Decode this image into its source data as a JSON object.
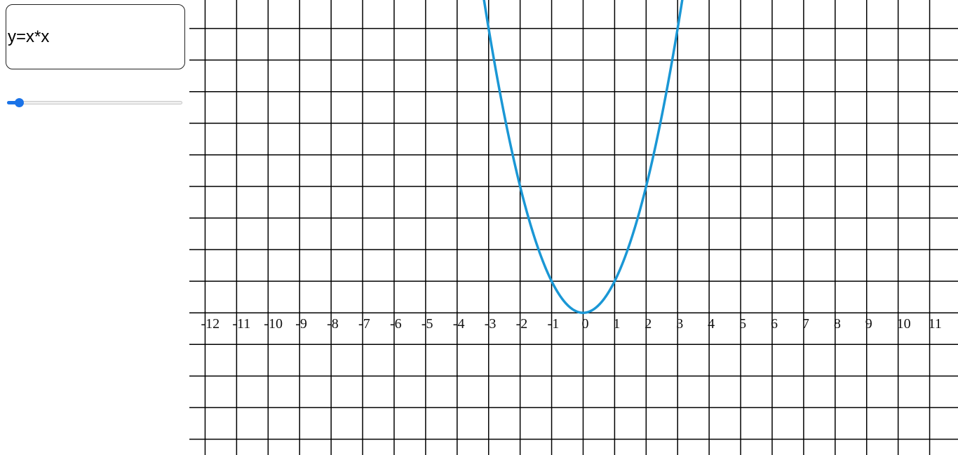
{
  "expression": {
    "value": "y=x*x",
    "placeholder": ""
  },
  "slider": {
    "fraction": 0.07,
    "accent_color": "#1a73e8"
  },
  "chart_data": {
    "type": "line",
    "title": "",
    "xlabel": "",
    "ylabel": "",
    "xlim": [
      -12.5,
      11.9
    ],
    "ylim": [
      -4.5,
      9.9
    ],
    "grid": true,
    "x_tick_labels": [
      "-12",
      "-11",
      "-10",
      "-9",
      "-8",
      "-7",
      "-6",
      "-5",
      "-4",
      "-3",
      "-2",
      "-1",
      "0",
      "1",
      "2",
      "3",
      "4",
      "5",
      "6",
      "7",
      "8",
      "9",
      "10",
      "11"
    ],
    "series": [
      {
        "expression": "x*x",
        "color": "#1a97d5",
        "x": [
          -3.2,
          -3,
          -2.5,
          -2,
          -1.5,
          -1,
          -0.5,
          0,
          0.5,
          1,
          1.5,
          2,
          2.5,
          3,
          3.2
        ],
        "y": [
          10.24,
          9,
          6.25,
          4,
          2.25,
          1,
          0.25,
          0,
          0.25,
          1,
          2.25,
          4,
          6.25,
          9,
          10.24
        ]
      }
    ]
  }
}
